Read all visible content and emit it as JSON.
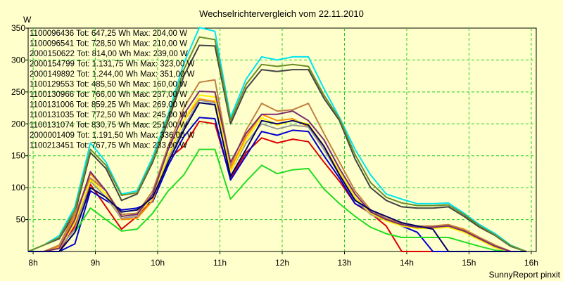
{
  "chart_data": {
    "type": "line",
    "title": "Wechselrichtervergleich vom 22.11.2010",
    "ylabel": "W",
    "footer": "SunnyReport pinxit",
    "ylim": [
      0,
      350
    ],
    "xlim": [
      7.92,
      16.08
    ],
    "yticks": [
      50,
      100,
      150,
      200,
      250,
      300,
      350
    ],
    "xticks": [
      {
        "value": 8,
        "label": "8h"
      },
      {
        "value": 9,
        "label": "9h"
      },
      {
        "value": 10,
        "label": "10h"
      },
      {
        "value": 11,
        "label": "11h"
      },
      {
        "value": 12,
        "label": "12h"
      },
      {
        "value": 13,
        "label": "13h"
      },
      {
        "value": 14,
        "label": "14h"
      },
      {
        "value": 15,
        "label": "15h"
      },
      {
        "value": 16,
        "label": "16h"
      }
    ],
    "grid": true,
    "legend_position": "top-left",
    "x": [
      7.92,
      8.17,
      8.42,
      8.67,
      8.92,
      9.17,
      9.42,
      9.67,
      9.92,
      10.17,
      10.42,
      10.67,
      10.92,
      11.17,
      11.42,
      11.67,
      11.92,
      12.17,
      12.42,
      12.67,
      12.92,
      13.17,
      13.42,
      13.67,
      13.92,
      14.17,
      14.42,
      14.67,
      14.92,
      15.17,
      15.42,
      15.67,
      15.92
    ],
    "series": [
      {
        "name": "1100096436 Tot: 647,25 Wh Max: 204,00 W",
        "color": "#dd0000",
        "values": [
          0,
          0,
          0,
          40,
          105,
          70,
          35,
          55,
          80,
          145,
          165,
          204,
          200,
          115,
          155,
          178,
          170,
          176,
          172,
          140,
          110,
          75,
          60,
          40,
          0,
          0,
          0,
          0,
          0,
          0,
          0,
          0,
          0
        ]
      },
      {
        "name": "1100096541 Tot: 728,50 Wh Max: 210,00 W",
        "color": "#0000cc",
        "values": [
          0,
          0,
          0,
          12,
          95,
          80,
          65,
          68,
          78,
          135,
          180,
          210,
          208,
          112,
          150,
          188,
          182,
          190,
          188,
          150,
          115,
          75,
          62,
          50,
          40,
          30,
          0,
          0,
          0,
          0,
          0,
          0,
          0
        ]
      },
      {
        "name": "2000150622 Tot: 814,00 Wh Max: 239,00 W",
        "color": "#ff8c00",
        "values": [
          0,
          0,
          8,
          55,
          122,
          95,
          50,
          52,
          80,
          150,
          205,
          239,
          235,
          130,
          180,
          215,
          205,
          208,
          195,
          165,
          125,
          85,
          60,
          50,
          42,
          38,
          40,
          42,
          35,
          22,
          10,
          0,
          0
        ]
      },
      {
        "name": "2000154799 Tot: 1.131,75 Wh Max: 323,00 W",
        "color": "#444444",
        "values": [
          0,
          10,
          20,
          60,
          155,
          130,
          80,
          90,
          140,
          205,
          275,
          323,
          322,
          200,
          255,
          285,
          282,
          285,
          285,
          240,
          205,
          145,
          100,
          80,
          70,
          68,
          68,
          70,
          55,
          38,
          25,
          8,
          0
        ]
      },
      {
        "name": "2000149892 Tot: 1.244,00 Wh Max: 351,00 W",
        "color": "#00e5ee",
        "values": [
          0,
          10,
          25,
          70,
          170,
          140,
          90,
          95,
          148,
          215,
          295,
          351,
          345,
          210,
          270,
          305,
          300,
          305,
          305,
          255,
          210,
          160,
          120,
          90,
          82,
          75,
          75,
          76,
          60,
          42,
          28,
          10,
          0
        ]
      },
      {
        "name": "1100129553 Tot: 485,50 Wh Max: 160,00 W",
        "color": "#22dd22",
        "values": [
          0,
          0,
          0,
          30,
          68,
          50,
          32,
          35,
          60,
          95,
          120,
          160,
          160,
          82,
          110,
          135,
          122,
          128,
          130,
          98,
          75,
          55,
          38,
          28,
          22,
          22,
          22,
          22,
          15,
          8,
          2,
          0,
          0
        ]
      },
      {
        "name": "1100130966 Tot: 766,00 Wh Max: 237,00 W",
        "color": "#999999",
        "values": [
          0,
          0,
          5,
          35,
          110,
          85,
          52,
          55,
          88,
          145,
          195,
          237,
          233,
          125,
          170,
          200,
          192,
          198,
          195,
          160,
          120,
          82,
          58,
          48,
          42,
          38,
          38,
          40,
          32,
          20,
          8,
          0,
          0
        ]
      },
      {
        "name": "1100131006 Tot: 859,25 Wh Max: 269,00 W",
        "color": "#c08040",
        "values": [
          0,
          0,
          10,
          60,
          115,
          95,
          58,
          60,
          95,
          165,
          225,
          265,
          269,
          135,
          190,
          232,
          220,
          222,
          232,
          185,
          140,
          95,
          65,
          52,
          44,
          40,
          40,
          42,
          34,
          22,
          10,
          0,
          0
        ]
      },
      {
        "name": "1100131035 Tot: 772,50 Wh Max: 245,00 W",
        "color": "#ffee00",
        "values": [
          0,
          0,
          5,
          45,
          112,
          90,
          55,
          58,
          85,
          150,
          205,
          245,
          242,
          125,
          175,
          210,
          198,
          205,
          200,
          165,
          125,
          85,
          60,
          48,
          40,
          36,
          36,
          38,
          30,
          18,
          6,
          0,
          0
        ]
      },
      {
        "name": "1100131074 Tot: 830,75 Wh Max: 251,00 W",
        "color": "#7b2c6e",
        "values": [
          0,
          0,
          5,
          50,
          125,
          95,
          55,
          58,
          90,
          160,
          215,
          251,
          250,
          140,
          185,
          215,
          215,
          220,
          205,
          175,
          130,
          90,
          62,
          50,
          42,
          38,
          38,
          40,
          32,
          20,
          8,
          0,
          0
        ]
      },
      {
        "name": "2000001409 Tot: 1.191,50 Wh Max: 336,00 W",
        "color": "#6b8e23",
        "values": [
          0,
          10,
          22,
          65,
          160,
          135,
          88,
          92,
          143,
          210,
          285,
          336,
          332,
          205,
          262,
          293,
          290,
          293,
          290,
          245,
          208,
          152,
          108,
          85,
          76,
          72,
          72,
          73,
          58,
          40,
          26,
          9,
          0
        ]
      },
      {
        "name": "1100213451 Tot: 767,75 Wh Max: 233,00 W",
        "color": "#000066",
        "values": [
          0,
          0,
          0,
          30,
          100,
          85,
          62,
          65,
          85,
          140,
          190,
          233,
          230,
          118,
          160,
          205,
          200,
          205,
          198,
          165,
          120,
          80,
          65,
          55,
          45,
          40,
          35,
          0,
          0,
          0,
          0,
          0,
          0
        ]
      }
    ]
  }
}
